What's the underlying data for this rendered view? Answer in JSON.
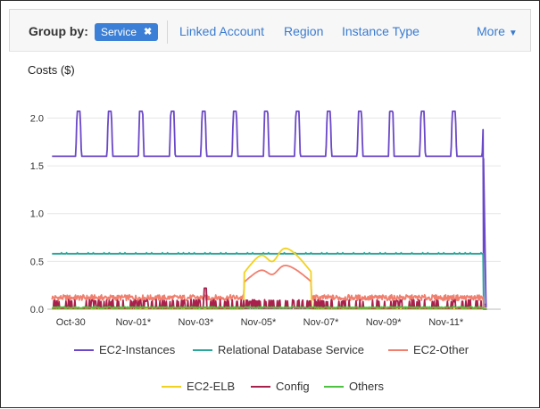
{
  "toolbar": {
    "group_by_label": "Group by:",
    "chip_label": "Service",
    "chip_remove": "✖",
    "links": [
      "Linked Account",
      "Region",
      "Instance Type"
    ],
    "more_label": "More",
    "more_caret": "▼"
  },
  "chart_data": {
    "type": "line",
    "title": "Costs ($)",
    "ylim": [
      0,
      2.2
    ],
    "yticks": [
      "0.0",
      "0.5",
      "1.0",
      "1.5",
      "2.0"
    ],
    "ytick_values": [
      0,
      0.5,
      1.0,
      1.5,
      2.0
    ],
    "x_ticks": [
      "Oct-30",
      "Nov-01*",
      "Nov-03*",
      "Nov-05*",
      "Nov-07*",
      "Nov-09*",
      "Nov-11*"
    ],
    "x_range_days": [
      -0.75,
      13.75
    ],
    "x_tick_days": [
      0,
      2,
      4,
      6,
      8,
      10,
      12
    ],
    "grid": "horizontal",
    "legend_position": "bottom",
    "series": [
      {
        "name": "EC2-Instances",
        "color": "#6b48c8",
        "baseline": 1.6,
        "peak": 2.07
      },
      {
        "name": "Relational Database Service",
        "color": "#2aa69a",
        "baseline": 0.58
      },
      {
        "name": "EC2-Other",
        "color": "#f07f6e",
        "baseline": 0.09,
        "bump_peak": 0.45
      },
      {
        "name": "EC2-ELB",
        "color": "#f2d21e",
        "baseline": 0.0,
        "bump_peak": 0.68
      },
      {
        "name": "Config",
        "color": "#a8204c",
        "baseline": 0.02,
        "spike": 0.22
      },
      {
        "name": "Others",
        "color": "#4cc240",
        "baseline": 0.01
      }
    ]
  }
}
